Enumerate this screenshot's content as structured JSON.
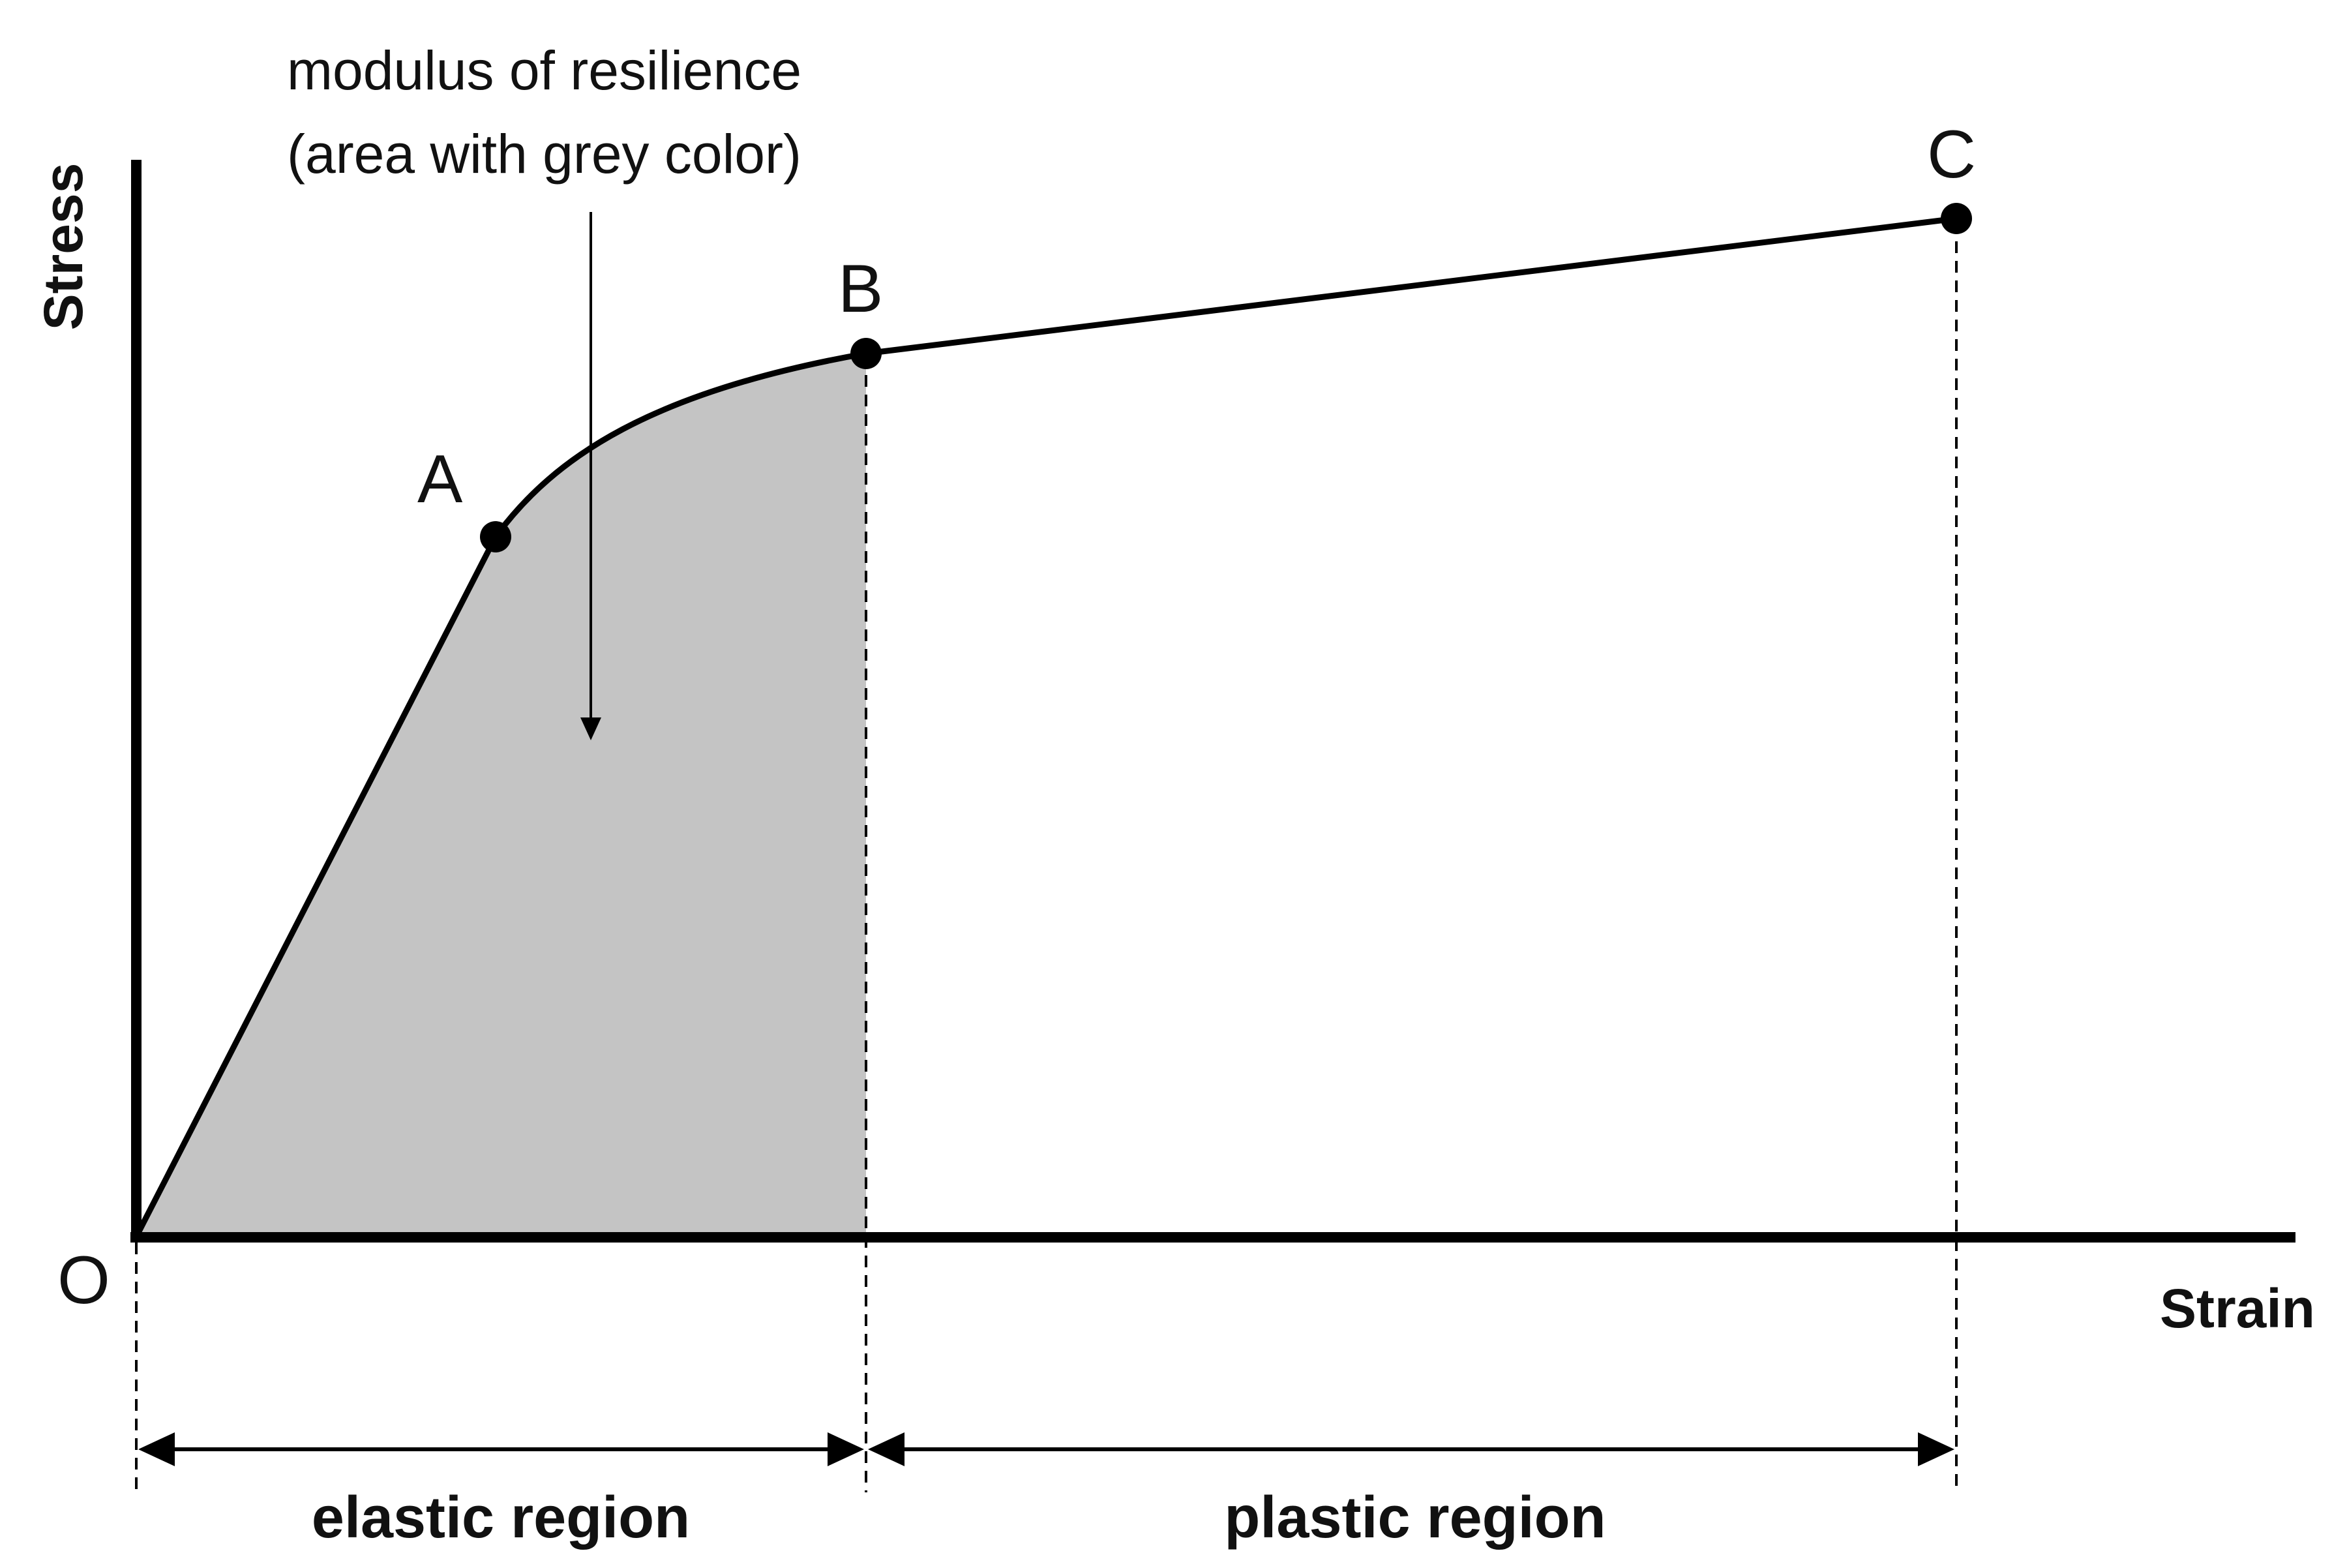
{
  "diagram": {
    "annotation": {
      "line1": "modulus of resilience",
      "line2": "(area with grey color)"
    },
    "axes": {
      "y_label": "Stress",
      "x_label": "Strain",
      "origin_label": "O"
    },
    "points": {
      "a": "A",
      "b": "B",
      "c": "C"
    },
    "regions": {
      "elastic": "elastic region",
      "plastic": "plastic region"
    },
    "colors": {
      "shaded_area": "#c4c4c4",
      "line": "#000000",
      "background": "#ffffff"
    }
  }
}
